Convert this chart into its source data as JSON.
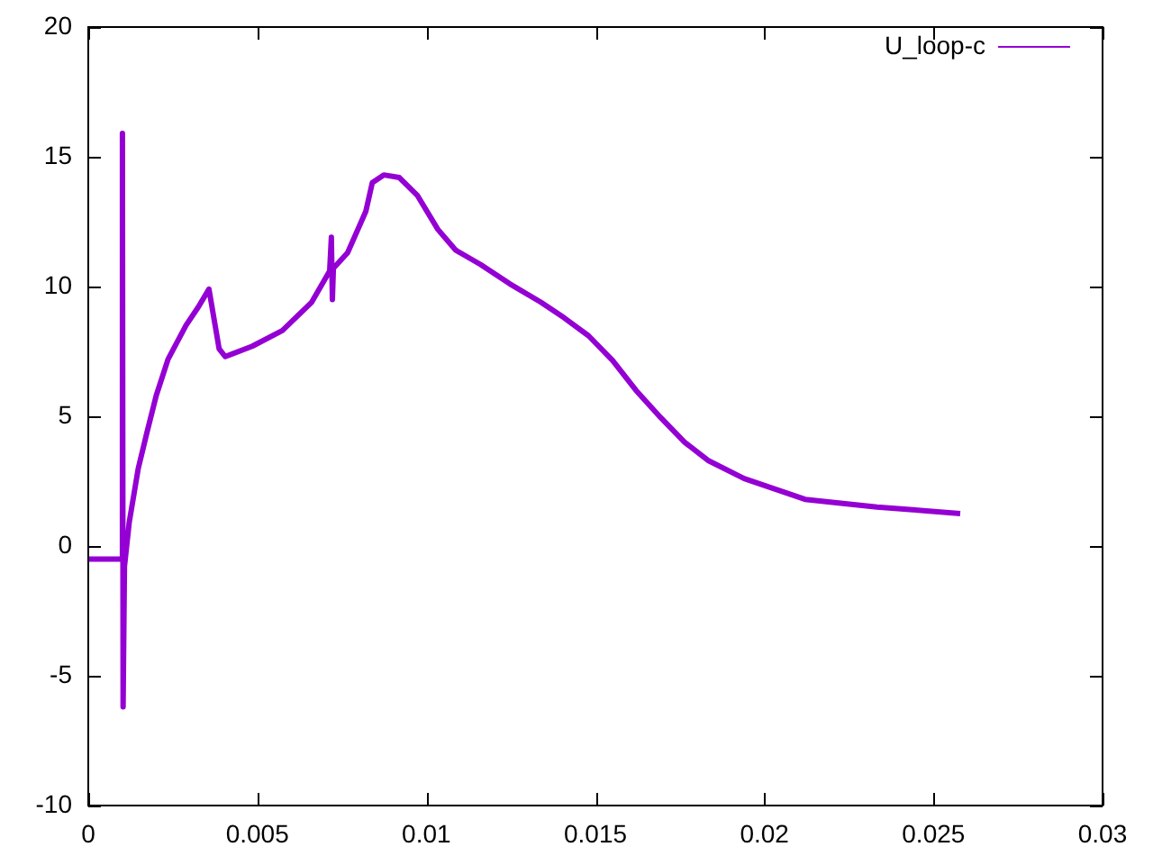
{
  "chart_data": {
    "type": "line",
    "x": [
      0,
      0.00096,
      0.00101,
      0.00103,
      0.00107,
      0.00121,
      0.00148,
      0.00174,
      0.00201,
      0.00236,
      0.00289,
      0.00325,
      0.00357,
      0.00387,
      0.00405,
      0.00485,
      0.00574,
      0.00661,
      0.00714,
      0.00719,
      0.00722,
      0.00725,
      0.00767,
      0.00821,
      0.0084,
      0.00874,
      0.0092,
      0.00974,
      0.01034,
      0.01087,
      0.0116,
      0.01247,
      0.01338,
      0.01407,
      0.0148,
      0.01551,
      0.0162,
      0.01693,
      0.01764,
      0.01833,
      0.0194,
      0.0203,
      0.0212,
      0.02226,
      0.02333,
      0.02439,
      0.02579
    ],
    "series": [
      {
        "name": "U_loop-c",
        "color": "#9400d3",
        "values": [
          -0.5,
          -0.5,
          15.9,
          -6.2,
          -0.8,
          0.9,
          3.0,
          4.4,
          5.8,
          7.2,
          8.5,
          9.2,
          9.9,
          7.6,
          7.3,
          7.7,
          8.3,
          9.4,
          10.6,
          11.9,
          9.5,
          10.7,
          11.3,
          12.9,
          14.0,
          14.3,
          14.2,
          13.5,
          12.2,
          11.4,
          10.85,
          10.1,
          9.4,
          8.8,
          8.1,
          7.15,
          6.0,
          4.95,
          4.0,
          3.3,
          2.6,
          2.2,
          1.8,
          1.65,
          1.5,
          1.4,
          1.25
        ]
      }
    ],
    "xlim": [
      0,
      0.03
    ],
    "ylim": [
      -10,
      20
    ],
    "xticks": [
      0,
      0.005,
      0.01,
      0.015,
      0.02,
      0.025,
      0.03
    ],
    "yticks": [
      -10,
      -5,
      0,
      5,
      10,
      15,
      20
    ],
    "legend": "top right"
  }
}
